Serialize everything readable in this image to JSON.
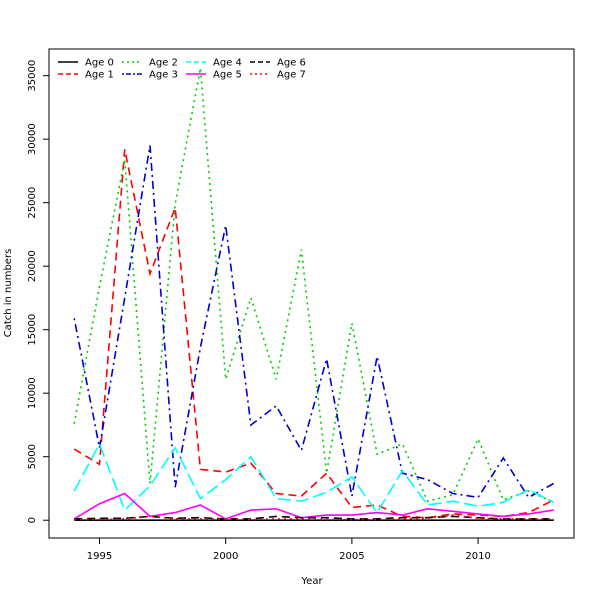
{
  "chart_data": {
    "type": "line",
    "title": "",
    "xlabel": "Year",
    "ylabel": "Catch in numbers",
    "xlim": [
      1993.0,
      2013.8
    ],
    "ylim": [
      -1400,
      37100
    ],
    "x_ticks": [
      1995,
      2000,
      2005,
      2010
    ],
    "y_ticks": [
      0,
      5000,
      10000,
      15000,
      20000,
      25000,
      30000,
      35000
    ],
    "legend_position": "top-left",
    "grid": false,
    "x": [
      1994,
      1995,
      1996,
      1997,
      1998,
      1999,
      2000,
      2001,
      2002,
      2003,
      2004,
      2005,
      2006,
      2007,
      2008,
      2009,
      2010,
      2011,
      2012,
      2013
    ],
    "series": [
      {
        "name": "Age 0",
        "color": "#000000",
        "dash": "solid",
        "values": [
          0,
          0,
          0,
          0,
          0,
          0,
          0,
          0,
          0,
          0,
          0,
          0,
          0,
          0,
          0,
          0,
          0,
          0,
          0,
          0
        ]
      },
      {
        "name": "Age 1",
        "color": "#ff0000",
        "dash": "dashed",
        "values": [
          5600,
          4400,
          29200,
          19400,
          24600,
          4000,
          3800,
          4500,
          2100,
          1900,
          3700,
          1000,
          1200,
          300,
          200,
          500,
          400,
          300,
          600,
          1600
        ]
      },
      {
        "name": "Age 2",
        "color": "#00cd00",
        "dash": "dotted",
        "values": [
          7600,
          18400,
          28400,
          2900,
          24900,
          35600,
          11100,
          17500,
          11100,
          21300,
          3700,
          15500,
          5200,
          6000,
          1500,
          2000,
          6400,
          1600,
          2300,
          1400
        ]
      },
      {
        "name": "Age 3",
        "color": "#0000cd",
        "dash": "dotdash",
        "values": [
          15900,
          5700,
          17500,
          29500,
          2600,
          13600,
          23200,
          7500,
          9000,
          5500,
          12700,
          1900,
          12900,
          3700,
          3200,
          2100,
          1800,
          4900,
          1800,
          2900
        ]
      },
      {
        "name": "Age 4",
        "color": "#00ffff",
        "dash": "longdash",
        "values": [
          2300,
          6000,
          800,
          2700,
          5700,
          1700,
          3200,
          5000,
          1700,
          1500,
          2200,
          3400,
          600,
          3900,
          1200,
          1500,
          1100,
          1400,
          2400,
          1400
        ]
      },
      {
        "name": "Age 5",
        "color": "#ff00ff",
        "dash": "solid",
        "values": [
          100,
          1300,
          2100,
          300,
          600,
          1200,
          100,
          800,
          900,
          200,
          400,
          400,
          600,
          400,
          900,
          700,
          500,
          300,
          500,
          800
        ]
      },
      {
        "name": "Age 6",
        "color": "#000000",
        "dash": "dashed",
        "values": [
          100,
          150,
          150,
          300,
          150,
          200,
          100,
          100,
          300,
          200,
          200,
          100,
          100,
          200,
          200,
          300,
          200,
          100,
          100,
          100
        ]
      },
      {
        "name": "Age 7",
        "color": "#ff0000",
        "dash": "dotted",
        "values": [
          50,
          50,
          100,
          300,
          100,
          100,
          100,
          50,
          100,
          100,
          50,
          50,
          50,
          100,
          150,
          400,
          150,
          100,
          100,
          100
        ]
      }
    ]
  }
}
